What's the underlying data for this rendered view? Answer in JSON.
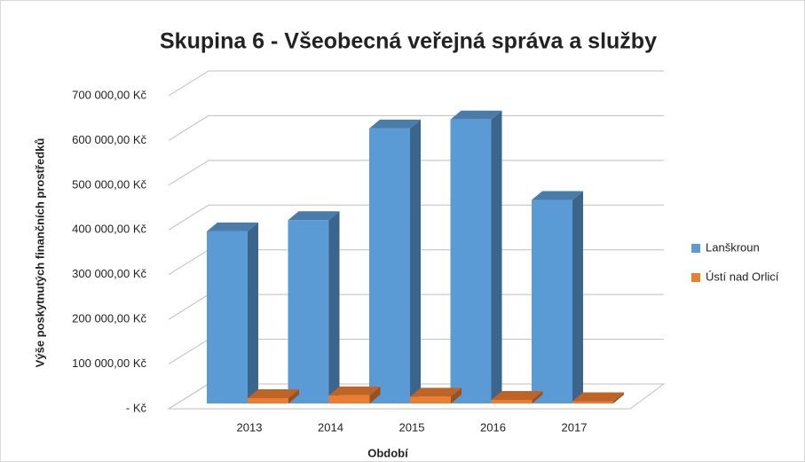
{
  "chart_data": {
    "type": "bar3d",
    "title": "Skupina 6 - Všeobecná veřejná správa a služby",
    "x_label": "Období",
    "y_label": "Výše poskytnutých finančních prostředků",
    "categories": [
      "2013",
      "2014",
      "2015",
      "2016",
      "2017"
    ],
    "series": [
      {
        "name": "Lanškroun",
        "color": "#5b9bd5",
        "values": [
          385000,
          410000,
          615000,
          635000,
          455000
        ]
      },
      {
        "name": "Ústí nad Orlicí",
        "color": "#ed7d31",
        "values": [
          12000,
          18000,
          15000,
          8000,
          5000
        ]
      }
    ],
    "ylim": [
      0,
      700000
    ],
    "yticks": [
      {
        "value": 0,
        "label": "-   Kč"
      },
      {
        "value": 100000,
        "label": "100 000,00 Kč"
      },
      {
        "value": 200000,
        "label": "200 000,00 Kč"
      },
      {
        "value": 300000,
        "label": "300 000,00 Kč"
      },
      {
        "value": 400000,
        "label": "400 000,00 Kč"
      },
      {
        "value": 500000,
        "label": "500 000,00 Kč"
      },
      {
        "value": 600000,
        "label": "600 000,00 Kč"
      },
      {
        "value": 700000,
        "label": "700 000,00 Kč"
      }
    ],
    "grid": true,
    "legend": "right"
  }
}
